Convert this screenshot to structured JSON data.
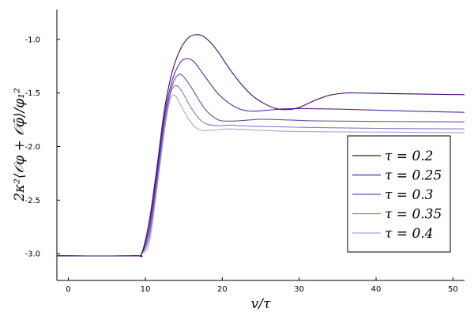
{
  "chart_data": {
    "type": "line",
    "xlabel": "v/τ",
    "ylabel": "2κ²⟨𝒪φ + 𝒪φ̄⟩/φ₁²",
    "xlim": [
      -1.5,
      51.5
    ],
    "ylim": [
      -3.25,
      -0.72
    ],
    "x_ticks": [
      0,
      10,
      20,
      30,
      40,
      50
    ],
    "y_ticks": [
      -3.0,
      -2.5,
      -2.0,
      -1.5,
      -1.0
    ],
    "x_tick_labels": [
      "0",
      "10",
      "20",
      "30",
      "40",
      "50"
    ],
    "y_tick_labels": [
      "-3.0",
      "-2.5",
      "-2.0",
      "-1.5",
      "-1.0"
    ],
    "grid": false,
    "legend_position": "bottom-right",
    "series": [
      {
        "name": "τ = 0.2",
        "color": "#3b0a6e",
        "points": [
          [
            -1.5,
            -3.02
          ],
          [
            8.5,
            -3.02
          ],
          [
            9.5,
            -3.0
          ],
          [
            10.5,
            -2.7
          ],
          [
            11.5,
            -2.2
          ],
          [
            12.5,
            -1.65
          ],
          [
            13.5,
            -1.3
          ],
          [
            14.5,
            -1.1
          ],
          [
            15.5,
            -0.99
          ],
          [
            16.5,
            -0.955
          ],
          [
            17.5,
            -0.97
          ],
          [
            18.5,
            -1.03
          ],
          [
            19.5,
            -1.12
          ],
          [
            21,
            -1.28
          ],
          [
            22.5,
            -1.42
          ],
          [
            24,
            -1.53
          ],
          [
            25.5,
            -1.6
          ],
          [
            27,
            -1.645
          ],
          [
            28.5,
            -1.655
          ],
          [
            30,
            -1.635
          ],
          [
            32,
            -1.57
          ],
          [
            34,
            -1.52
          ],
          [
            36,
            -1.5
          ],
          [
            38,
            -1.5
          ],
          [
            42,
            -1.505
          ],
          [
            46,
            -1.51
          ],
          [
            51.5,
            -1.515
          ]
        ]
      },
      {
        "name": "τ = 0.25",
        "color": "#5e2794",
        "points": [
          [
            -1.5,
            -3.02
          ],
          [
            8.5,
            -3.02
          ],
          [
            9.5,
            -3.0
          ],
          [
            10.5,
            -2.75
          ],
          [
            11.5,
            -2.25
          ],
          [
            12.5,
            -1.7
          ],
          [
            13.5,
            -1.38
          ],
          [
            14.5,
            -1.22
          ],
          [
            15.3,
            -1.18
          ],
          [
            16.2,
            -1.2
          ],
          [
            17,
            -1.27
          ],
          [
            18,
            -1.37
          ],
          [
            19.5,
            -1.51
          ],
          [
            21,
            -1.6
          ],
          [
            22.5,
            -1.655
          ],
          [
            24,
            -1.67
          ],
          [
            26,
            -1.66
          ],
          [
            28,
            -1.648
          ],
          [
            30,
            -1.645
          ],
          [
            35,
            -1.65
          ],
          [
            40,
            -1.66
          ],
          [
            45,
            -1.67
          ],
          [
            51.5,
            -1.68
          ]
        ]
      },
      {
        "name": "τ = 0.3",
        "color": "#6b4aa8",
        "points": [
          [
            -1.5,
            -3.02
          ],
          [
            8.5,
            -3.02
          ],
          [
            9.5,
            -3.0
          ],
          [
            10.5,
            -2.8
          ],
          [
            11.5,
            -2.3
          ],
          [
            12.5,
            -1.75
          ],
          [
            13.5,
            -1.43
          ],
          [
            14.3,
            -1.33
          ],
          [
            15,
            -1.35
          ],
          [
            16,
            -1.45
          ],
          [
            17,
            -1.57
          ],
          [
            18,
            -1.67
          ],
          [
            19,
            -1.73
          ],
          [
            20,
            -1.76
          ],
          [
            22,
            -1.76
          ],
          [
            25,
            -1.745
          ],
          [
            28,
            -1.75
          ],
          [
            32,
            -1.76
          ],
          [
            40,
            -1.765
          ],
          [
            51.5,
            -1.77
          ]
        ]
      },
      {
        "name": "τ = 0.35",
        "color": "#8a79c0",
        "points": [
          [
            -1.5,
            -3.02
          ],
          [
            8.5,
            -3.02
          ],
          [
            9.5,
            -3.0
          ],
          [
            10.5,
            -2.85
          ],
          [
            11.5,
            -2.35
          ],
          [
            12.5,
            -1.8
          ],
          [
            13.3,
            -1.5
          ],
          [
            14,
            -1.43
          ],
          [
            14.8,
            -1.49
          ],
          [
            15.8,
            -1.62
          ],
          [
            17,
            -1.74
          ],
          [
            18,
            -1.79
          ],
          [
            19.5,
            -1.805
          ],
          [
            21,
            -1.8
          ],
          [
            24,
            -1.81
          ],
          [
            30,
            -1.82
          ],
          [
            40,
            -1.83
          ],
          [
            51.5,
            -1.835
          ]
        ]
      },
      {
        "name": "τ = 0.4",
        "color": "#aca5d6",
        "points": [
          [
            -1.5,
            -3.02
          ],
          [
            8.5,
            -3.02
          ],
          [
            9.5,
            -3.0
          ],
          [
            10.5,
            -2.9
          ],
          [
            11.5,
            -2.4
          ],
          [
            12.5,
            -1.85
          ],
          [
            13.2,
            -1.57
          ],
          [
            13.8,
            -1.52
          ],
          [
            14.5,
            -1.6
          ],
          [
            15.5,
            -1.73
          ],
          [
            16.5,
            -1.82
          ],
          [
            17.5,
            -1.85
          ],
          [
            19,
            -1.845
          ],
          [
            21,
            -1.835
          ],
          [
            24,
            -1.845
          ],
          [
            30,
            -1.86
          ],
          [
            40,
            -1.865
          ],
          [
            51.5,
            -1.87
          ]
        ]
      }
    ]
  }
}
